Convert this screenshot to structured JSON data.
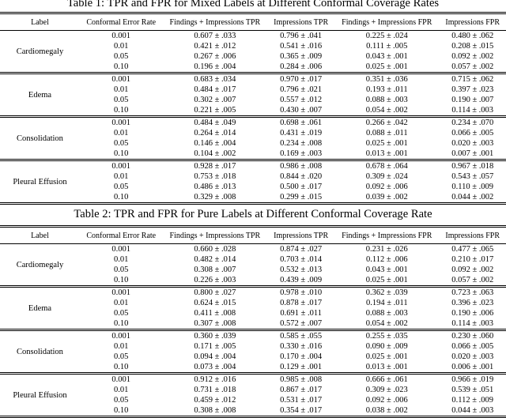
{
  "tables": [
    {
      "caption": "Table 1: TPR and FPR for Mixed Labels at Different Conformal Coverage Rates",
      "columns": [
        "Label",
        "Conformal Error Rate",
        "Findings + Impressions TPR",
        "Impressions TPR",
        "Findings + Impressions FPR",
        "Impressions FPR"
      ],
      "groups": [
        {
          "label": "Cardiomegaly",
          "rows": [
            {
              "rate": "0.001",
              "values": [
                "0.607 ± .033",
                "0.796 ± .041",
                "0.225 ± .024",
                "0.480 ± .062"
              ]
            },
            {
              "rate": "0.01",
              "values": [
                "0.421 ± .012",
                "0.541 ± .016",
                "0.111 ± .005",
                "0.208 ± .015"
              ]
            },
            {
              "rate": "0.05",
              "values": [
                "0.267 ± .006",
                "0.365 ± .009",
                "0.043 ± .001",
                "0.092 ± .002"
              ]
            },
            {
              "rate": "0.10",
              "values": [
                "0.196 ± .004",
                "0.284 ± .006",
                "0.025 ± .001",
                "0.057 ± .002"
              ]
            }
          ]
        },
        {
          "label": "Edema",
          "rows": [
            {
              "rate": "0.001",
              "values": [
                "0.683 ± .034",
                "0.970 ± .017",
                "0.351 ± .036",
                "0.715 ± .062"
              ]
            },
            {
              "rate": "0.01",
              "values": [
                "0.484 ± .017",
                "0.796 ± .021",
                "0.193 ± .011",
                "0.397 ± .023"
              ]
            },
            {
              "rate": "0.05",
              "values": [
                "0.302 ± .007",
                "0.557 ± .012",
                "0.088 ± .003",
                "0.190 ± .007"
              ]
            },
            {
              "rate": "0.10",
              "values": [
                "0.221 ± .005",
                "0.430 ± .007",
                "0.054 ± .002",
                "0.114 ± .003"
              ]
            }
          ]
        },
        {
          "label": "Consolidation",
          "rows": [
            {
              "rate": "0.001",
              "values": [
                "0.484 ± .049",
                "0.698 ± .061",
                "0.266 ± .042",
                "0.234 ± .070"
              ]
            },
            {
              "rate": "0.01",
              "values": [
                "0.264 ± .014",
                "0.431 ± .019",
                "0.088 ± .011",
                "0.066 ± .005"
              ]
            },
            {
              "rate": "0.05",
              "values": [
                "0.146 ± .004",
                "0.234 ± .008",
                "0.025 ± .001",
                "0.020 ± .003"
              ]
            },
            {
              "rate": "0.10",
              "values": [
                "0.104 ± .002",
                "0.169 ± .003",
                "0.013 ± .001",
                "0.007 ± .001"
              ]
            }
          ]
        },
        {
          "label": "Pleural Effusion",
          "rows": [
            {
              "rate": "0.001",
              "values": [
                "0.928 ± .017",
                "0.986 ± .008",
                "0.678 ± .064",
                "0.967 ± .018"
              ]
            },
            {
              "rate": "0.01",
              "values": [
                "0.753 ± .018",
                "0.844 ± .020",
                "0.309 ± .024",
                "0.543 ± .057"
              ]
            },
            {
              "rate": "0.05",
              "values": [
                "0.486 ± .013",
                "0.500 ± .017",
                "0.092 ± .006",
                "0.110 ± .009"
              ]
            },
            {
              "rate": "0.10",
              "values": [
                "0.329 ± .008",
                "0.299 ± .015",
                "0.039 ± .002",
                "0.044 ± .002"
              ]
            }
          ]
        }
      ]
    },
    {
      "caption": "Table 2: TPR and FPR for Pure Labels at Different Conformal Coverage Rate",
      "columns": [
        "Label",
        "Conformal Error Rate",
        "Findings + Impressions TPR",
        "Impressions TPR",
        "Findings + Impressions FPR",
        "Impressions FPR"
      ],
      "groups": [
        {
          "label": "Cardiomegaly",
          "rows": [
            {
              "rate": "0.001",
              "values": [
                "0.660 ± .028",
                "0.874 ± .027",
                "0.231 ± .026",
                "0.477 ± .065"
              ]
            },
            {
              "rate": "0.01",
              "values": [
                "0.482 ± .014",
                "0.703 ± .014",
                "0.112 ± .006",
                "0.210 ± .017"
              ]
            },
            {
              "rate": "0.05",
              "values": [
                "0.308 ± .007",
                "0.532 ± .013",
                "0.043 ± .001",
                "0.092 ± .002"
              ]
            },
            {
              "rate": "0.10",
              "values": [
                "0.226 ± .003",
                "0.439 ± .009",
                "0.025 ± .001",
                "0.057 ± .002"
              ]
            }
          ]
        },
        {
          "label": "Edema",
          "rows": [
            {
              "rate": "0.001",
              "values": [
                "0.800 ± .027",
                "0.978 ± .010",
                "0.362 ± .039",
                "0.723 ± .063"
              ]
            },
            {
              "rate": "0.01",
              "values": [
                "0.624 ± .015",
                "0.878 ± .017",
                "0.194 ± .011",
                "0.396 ± .023"
              ]
            },
            {
              "rate": "0.05",
              "values": [
                "0.411 ± .008",
                "0.691 ± .011",
                "0.088 ± .003",
                "0.190 ± .006"
              ]
            },
            {
              "rate": "0.10",
              "values": [
                "0.307 ± .008",
                "0.572 ± .007",
                "0.054 ± .002",
                "0.114 ± .003"
              ]
            }
          ]
        },
        {
          "label": "Consolidation",
          "rows": [
            {
              "rate": "0.001",
              "values": [
                "0.360 ± .039",
                "0.585 ± .055",
                "0.255 ± .035",
                "0.230 ± .060"
              ]
            },
            {
              "rate": "0.01",
              "values": [
                "0.171 ± .005",
                "0.330 ± .016",
                "0.090 ± .009",
                "0.066 ± .005"
              ]
            },
            {
              "rate": "0.05",
              "values": [
                "0.094 ± .004",
                "0.170 ± .004",
                "0.025 ± .001",
                "0.020 ± .003"
              ]
            },
            {
              "rate": "0.10",
              "values": [
                "0.073 ± .004",
                "0.129 ± .001",
                "0.013 ± .001",
                "0.006 ± .001"
              ]
            }
          ]
        },
        {
          "label": "Pleural Effusion",
          "rows": [
            {
              "rate": "0.001",
              "values": [
                "0.912 ± .016",
                "0.985 ± .008",
                "0.666 ± .061",
                "0.966 ± .019"
              ]
            },
            {
              "rate": "0.01",
              "values": [
                "0.731 ± .018",
                "0.867 ± .017",
                "0.309 ± .023",
                "0.539 ± .051"
              ]
            },
            {
              "rate": "0.05",
              "values": [
                "0.459 ± .012",
                "0.531 ± .017",
                "0.092 ± .006",
                "0.112 ± .009"
              ]
            },
            {
              "rate": "0.10",
              "values": [
                "0.308 ± .008",
                "0.354 ± .017",
                "0.038 ± .002",
                "0.044 ± .003"
              ]
            }
          ]
        }
      ]
    }
  ]
}
